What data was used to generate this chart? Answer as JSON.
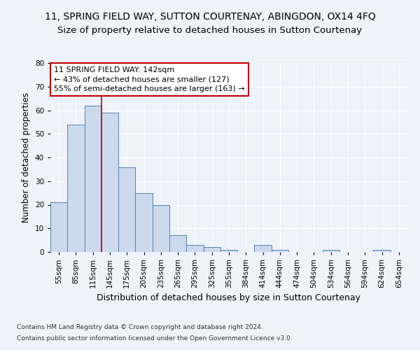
{
  "title": "11, SPRING FIELD WAY, SUTTON COURTENAY, ABINGDON, OX14 4FQ",
  "subtitle": "Size of property relative to detached houses in Sutton Courtenay",
  "xlabel": "Distribution of detached houses by size in Sutton Courtenay",
  "ylabel": "Number of detached properties",
  "footnote1": "Contains HM Land Registry data © Crown copyright and database right 2024.",
  "footnote2": "Contains public sector information licensed under the Open Government Licence v3.0.",
  "annotation_line1": "11 SPRING FIELD WAY: 142sqm",
  "annotation_line2": "← 43% of detached houses are smaller (127)",
  "annotation_line3": "55% of semi-detached houses are larger (163) →",
  "bar_color": "#ccd9ed",
  "bar_edge_color": "#5580b0",
  "vline_color": "#c00000",
  "categories": [
    "55sqm",
    "85sqm",
    "115sqm",
    "145sqm",
    "175sqm",
    "205sqm",
    "235sqm",
    "265sqm",
    "295sqm",
    "325sqm",
    "355sqm",
    "384sqm",
    "414sqm",
    "444sqm",
    "474sqm",
    "504sqm",
    "534sqm",
    "564sqm",
    "594sqm",
    "624sqm",
    "654sqm"
  ],
  "values": [
    21,
    54,
    62,
    59,
    36,
    25,
    20,
    7,
    3,
    2,
    1,
    0,
    3,
    1,
    0,
    0,
    1,
    0,
    0,
    1,
    0
  ],
  "vline_x_index": 3,
  "ylim": [
    0,
    80
  ],
  "yticks": [
    0,
    10,
    20,
    30,
    40,
    50,
    60,
    70,
    80
  ],
  "background_color": "#eef2f9",
  "plot_background": "#eef2f9",
  "title_fontsize": 10,
  "subtitle_fontsize": 9.5,
  "ylabel_fontsize": 8.5,
  "xlabel_fontsize": 9,
  "tick_fontsize": 7.5,
  "annotation_fontsize": 8,
  "footnote_fontsize": 6.5
}
